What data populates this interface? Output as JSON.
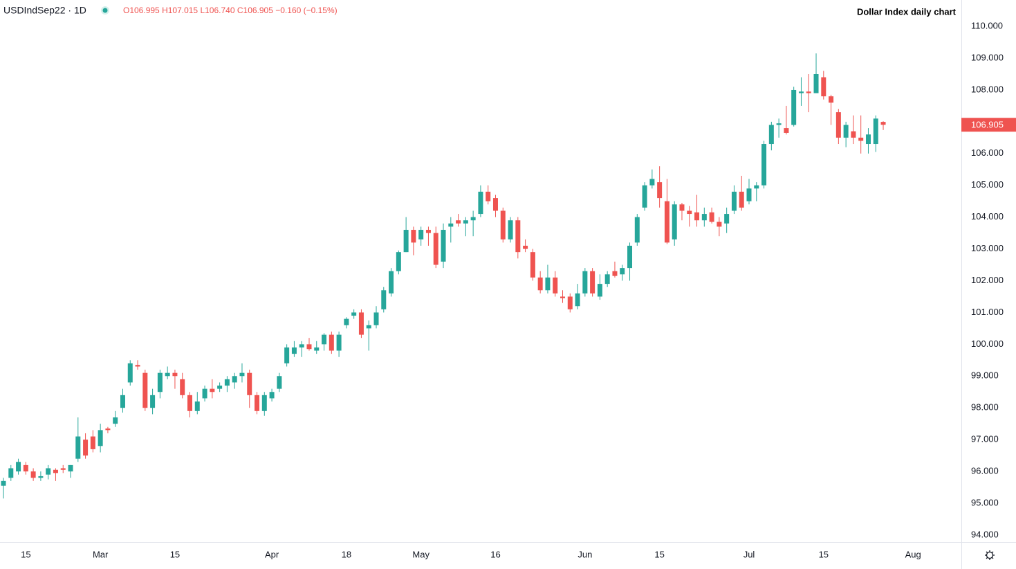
{
  "chart_data": {
    "type": "candlestick",
    "title": "Dollar Index daily chart",
    "symbol": "USDIndSep22 · 1D",
    "ohlc_text": [
      "O106.995",
      "H107.015",
      "L106.740",
      "C106.905",
      "−0.160 (−0.15%)"
    ],
    "last_price": 106.905,
    "up_color": "#26a69a",
    "down_color": "#ef5350",
    "grid": false,
    "ylim": [
      93.78,
      110.83
    ],
    "yticks": [
      {
        "value": 94,
        "label": "94.000"
      },
      {
        "value": 95,
        "label": "95.000"
      },
      {
        "value": 96,
        "label": "96.000"
      },
      {
        "value": 97,
        "label": "97.000"
      },
      {
        "value": 98,
        "label": "98.000"
      },
      {
        "value": 99,
        "label": "99.000"
      },
      {
        "value": 100,
        "label": "100.000"
      },
      {
        "value": 101,
        "label": "101.000"
      },
      {
        "value": 102,
        "label": "102.000"
      },
      {
        "value": 103,
        "label": "103.000"
      },
      {
        "value": 104,
        "label": "104.000"
      },
      {
        "value": 105,
        "label": "105.000"
      },
      {
        "value": 106,
        "label": "106.000"
      },
      {
        "value": 107,
        "label": "107.000"
      },
      {
        "value": 108,
        "label": "108.000"
      },
      {
        "value": 109,
        "label": "109.000"
      },
      {
        "value": 110,
        "label": "110.000"
      }
    ],
    "categories": [
      null,
      null,
      null,
      "15",
      null,
      null,
      null,
      null,
      null,
      null,
      null,
      null,
      null,
      "Mar",
      null,
      null,
      null,
      null,
      null,
      null,
      null,
      null,
      null,
      "15",
      null,
      null,
      null,
      null,
      null,
      null,
      null,
      null,
      null,
      null,
      null,
      null,
      "Apr",
      null,
      null,
      null,
      null,
      null,
      null,
      null,
      null,
      null,
      "18",
      null,
      null,
      null,
      null,
      null,
      null,
      null,
      null,
      null,
      "May",
      null,
      null,
      null,
      null,
      null,
      null,
      null,
      null,
      null,
      "16",
      null,
      null,
      null,
      null,
      null,
      null,
      null,
      null,
      null,
      null,
      null,
      "Jun",
      null,
      null,
      null,
      null,
      null,
      null,
      null,
      null,
      null,
      "15",
      null,
      null,
      null,
      null,
      null,
      null,
      null,
      null,
      null,
      null,
      null,
      "Jul",
      null,
      null,
      null,
      null,
      null,
      null,
      null,
      null,
      null,
      "15",
      null,
      null,
      null,
      null,
      null,
      null,
      null,
      null,
      null,
      null,
      null,
      "Aug"
    ],
    "open": [
      95.55,
      95.8,
      96.0,
      96.2,
      96.0,
      95.8,
      95.9,
      96.05,
      96.1,
      96.0,
      96.4,
      97.0,
      97.1,
      96.8,
      97.35,
      97.5,
      98.0,
      98.8,
      99.35,
      99.1,
      98.0,
      98.5,
      99.0,
      99.1,
      98.9,
      98.4,
      97.9,
      98.3,
      98.6,
      98.6,
      98.7,
      98.8,
      99.0,
      99.1,
      98.4,
      97.9,
      98.3,
      98.6,
      99.4,
      99.7,
      99.9,
      100.0,
      99.8,
      100.0,
      100.3,
      99.8,
      100.6,
      100.9,
      101.0,
      100.5,
      100.6,
      101.1,
      101.6,
      102.3,
      102.9,
      103.6,
      103.3,
      103.6,
      103.5,
      102.6,
      103.7,
      103.9,
      103.8,
      103.9,
      104.1,
      104.8,
      104.6,
      104.2,
      103.3,
      103.9,
      103.1,
      102.9,
      102.1,
      101.7,
      102.1,
      101.5,
      101.5,
      101.2,
      101.6,
      102.3,
      101.5,
      101.9,
      102.3,
      102.2,
      102.4,
      103.2,
      104.3,
      105.0,
      105.1,
      104.5,
      103.3,
      104.4,
      104.2,
      104.15,
      103.9,
      104.15,
      103.85,
      103.8,
      104.2,
      104.8,
      104.5,
      104.9,
      105.0,
      106.3,
      106.9,
      106.8,
      106.9,
      107.9,
      107.95,
      107.9,
      108.4,
      107.8,
      107.3,
      106.5,
      106.7,
      106.5,
      106.3,
      106.3,
      106.995,
      null,
      null,
      null,
      null
    ],
    "high": [
      95.8,
      96.2,
      96.4,
      96.3,
      96.1,
      96.0,
      96.2,
      96.1,
      96.2,
      96.2,
      97.7,
      97.2,
      97.3,
      97.5,
      97.4,
      97.9,
      98.6,
      99.5,
      99.5,
      99.2,
      98.6,
      99.2,
      99.3,
      99.2,
      99.1,
      98.5,
      98.5,
      98.7,
      98.9,
      98.8,
      99.0,
      99.1,
      99.4,
      99.2,
      98.5,
      98.5,
      98.6,
      99.1,
      100.0,
      100.1,
      100.1,
      100.2,
      100.1,
      100.35,
      100.4,
      100.4,
      100.85,
      101.1,
      101.1,
      100.75,
      101.2,
      101.8,
      102.4,
      102.95,
      104.0,
      103.7,
      103.7,
      103.7,
      103.7,
      103.8,
      104.0,
      104.1,
      104.0,
      104.2,
      105.0,
      105.0,
      104.7,
      104.3,
      104.0,
      104.0,
      103.3,
      103.0,
      102.3,
      102.5,
      102.3,
      101.7,
      101.6,
      101.9,
      102.4,
      102.4,
      102.2,
      102.3,
      102.6,
      102.5,
      103.2,
      104.1,
      105.1,
      105.5,
      105.6,
      105.2,
      104.5,
      104.45,
      104.35,
      104.7,
      104.3,
      104.3,
      104.0,
      104.3,
      105.0,
      105.3,
      105.2,
      105.1,
      106.4,
      107.0,
      107.1,
      107.5,
      108.1,
      108.4,
      108.5,
      109.15,
      108.6,
      107.85,
      107.4,
      107.0,
      107.2,
      107.2,
      106.8,
      107.2,
      107.015,
      null,
      null,
      null,
      null
    ],
    "low": [
      95.15,
      95.7,
      95.9,
      95.9,
      95.7,
      95.7,
      95.75,
      95.7,
      95.95,
      95.8,
      96.3,
      96.4,
      96.6,
      96.6,
      97.2,
      97.4,
      97.85,
      98.7,
      99.2,
      97.9,
      97.8,
      98.3,
      98.9,
      98.6,
      98.3,
      97.7,
      97.8,
      98.2,
      98.3,
      98.5,
      98.5,
      98.6,
      98.8,
      98.0,
      97.8,
      97.75,
      98.2,
      98.5,
      99.3,
      99.6,
      99.6,
      99.8,
      99.7,
      99.8,
      99.7,
      99.6,
      100.5,
      100.8,
      100.2,
      99.8,
      100.5,
      101.0,
      101.5,
      102.2,
      102.9,
      102.8,
      103.1,
      103.1,
      102.4,
      102.4,
      103.2,
      103.7,
      103.4,
      103.4,
      104.0,
      104.4,
      104.0,
      103.2,
      103.2,
      102.7,
      102.9,
      102.0,
      101.6,
      101.6,
      101.5,
      101.3,
      101.0,
      101.1,
      101.5,
      101.5,
      101.4,
      101.8,
      102.1,
      102.0,
      102.0,
      103.1,
      104.2,
      104.9,
      104.3,
      103.15,
      103.1,
      103.9,
      103.7,
      103.7,
      103.7,
      103.8,
      103.4,
      103.5,
      104.1,
      104.2,
      104.4,
      104.5,
      104.9,
      106.1,
      106.5,
      106.6,
      106.85,
      107.5,
      107.3,
      107.9,
      107.7,
      106.9,
      106.3,
      106.2,
      106.3,
      106.0,
      106.0,
      106.05,
      106.74,
      null,
      null,
      null,
      null
    ],
    "close": [
      95.7,
      96.1,
      96.3,
      96.0,
      95.8,
      95.85,
      96.1,
      95.95,
      96.05,
      96.2,
      97.1,
      96.5,
      96.7,
      97.3,
      97.3,
      97.7,
      98.4,
      99.4,
      99.3,
      98.0,
      98.4,
      99.1,
      99.1,
      99.0,
      98.4,
      97.9,
      98.2,
      98.6,
      98.5,
      98.7,
      98.9,
      99.0,
      99.1,
      98.4,
      97.9,
      98.4,
      98.5,
      99.0,
      99.9,
      99.9,
      100.0,
      99.85,
      99.9,
      100.3,
      99.8,
      100.3,
      100.8,
      101.0,
      100.3,
      100.6,
      101.0,
      101.7,
      102.3,
      102.9,
      103.6,
      103.2,
      103.6,
      103.5,
      102.5,
      103.6,
      103.8,
      103.8,
      103.9,
      104.0,
      104.8,
      104.5,
      104.2,
      103.3,
      103.9,
      102.9,
      103.0,
      102.1,
      101.7,
      102.1,
      101.6,
      101.45,
      101.1,
      101.6,
      102.3,
      101.6,
      101.9,
      102.2,
      102.15,
      102.4,
      103.1,
      104.0,
      105.0,
      105.2,
      104.6,
      103.2,
      104.4,
      104.2,
      104.1,
      103.9,
      104.1,
      103.85,
      103.7,
      104.1,
      104.8,
      104.3,
      104.9,
      105.0,
      106.3,
      106.9,
      106.95,
      106.65,
      108.0,
      107.95,
      107.9,
      108.5,
      107.8,
      107.6,
      106.5,
      106.9,
      106.5,
      106.4,
      106.6,
      107.1,
      106.905,
      null,
      null,
      null,
      null
    ]
  }
}
